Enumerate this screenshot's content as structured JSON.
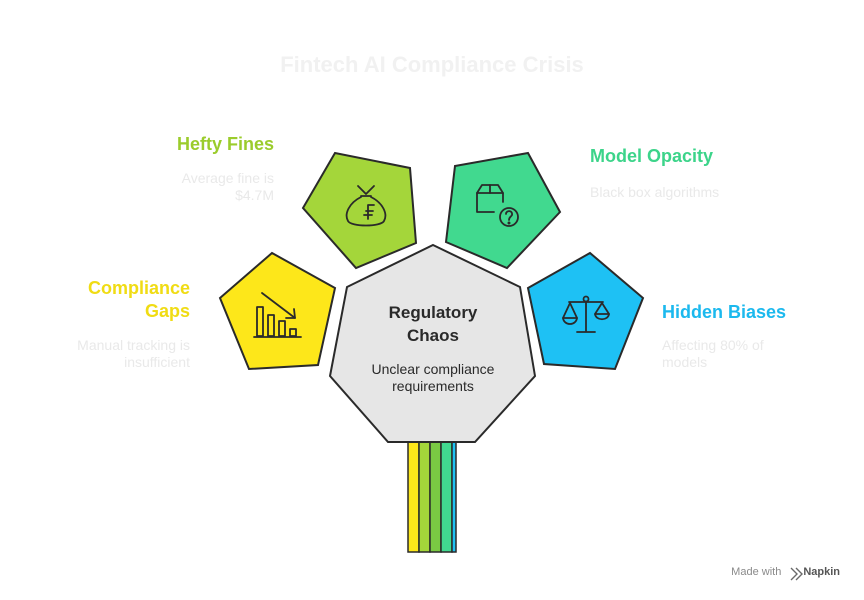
{
  "title": "Fintech AI Compliance Crisis",
  "center": {
    "title_line1": "Regulatory",
    "title_line2": "Chaos",
    "desc_line1": "Unclear compliance",
    "desc_line2": "requirements"
  },
  "nodes": [
    {
      "id": "fines",
      "title": "Hefty Fines",
      "desc_line1": "Average fine is",
      "desc_line2": "$4.7M",
      "color": "#a4d63a",
      "icon": "money-bag-icon"
    },
    {
      "id": "opacity",
      "title": "Model Opacity",
      "desc_line1": "Black box algorithms",
      "desc_line2": "",
      "color": "#41d98f",
      "icon": "box-question-icon"
    },
    {
      "id": "gaps",
      "title_line1": "Compliance",
      "title_line2": "Gaps",
      "desc_line1": "Manual tracking is",
      "desc_line2": "insufficient",
      "color": "#fde71a",
      "icon": "declining-chart-icon"
    },
    {
      "id": "biases",
      "title": "Hidden Biases",
      "desc_line1": "Affecting 80% of",
      "desc_line2": "models",
      "color": "#1ec1f4",
      "icon": "scales-icon"
    }
  ],
  "title_colors": {
    "fines": "#9bcc2c",
    "opacity": "#3cd48a",
    "gaps": "#f0dc14",
    "biases": "#1cb9ee"
  },
  "center_color": "#e6e6e6",
  "stem_colors": [
    "#fde71a",
    "#a4d63a",
    "#7ac943",
    "#41d98f",
    "#1ec1f4"
  ],
  "footer": {
    "made_with": "Made with",
    "brand": "Napkin"
  }
}
